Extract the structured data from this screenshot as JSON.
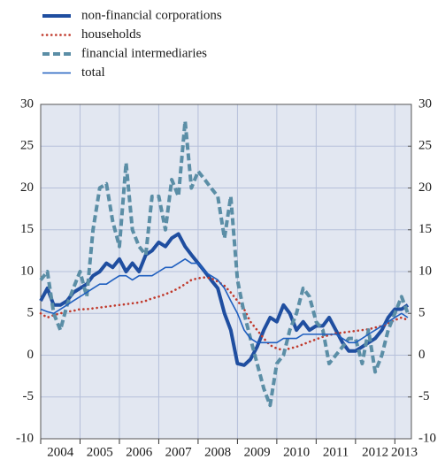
{
  "chart_data": {
    "type": "line",
    "x": [
      2004,
      2004.17,
      2004.33,
      2004.5,
      2004.67,
      2004.83,
      2005,
      2005.17,
      2005.33,
      2005.5,
      2005.67,
      2005.83,
      2006,
      2006.17,
      2006.33,
      2006.5,
      2006.67,
      2006.83,
      2007,
      2007.17,
      2007.33,
      2007.5,
      2007.67,
      2007.83,
      2008,
      2008.17,
      2008.33,
      2008.5,
      2008.67,
      2008.83,
      2009,
      2009.17,
      2009.33,
      2009.5,
      2009.67,
      2009.83,
      2010,
      2010.17,
      2010.33,
      2010.5,
      2010.67,
      2010.83,
      2011,
      2011.17,
      2011.33,
      2011.5,
      2011.67,
      2011.83,
      2012,
      2012.17,
      2012.33,
      2012.5,
      2012.67,
      2012.83,
      2013,
      2013.17,
      2013.33
    ],
    "series": [
      {
        "name": "non-financial corporations",
        "color": "#1f4ea0",
        "style": "thick",
        "values": [
          6.5,
          8,
          6,
          6,
          6.5,
          7.5,
          8,
          8.5,
          9.5,
          10,
          11,
          10.5,
          11.5,
          10,
          11,
          10,
          12,
          12.5,
          13.5,
          13,
          14,
          14.5,
          13,
          12,
          11,
          10,
          9,
          8,
          5,
          3,
          -1,
          -1.2,
          -0.5,
          1,
          3,
          4.5,
          4,
          6,
          5,
          3,
          4,
          3,
          3.5,
          3.5,
          4.5,
          3,
          1.5,
          0.5,
          0.5,
          1,
          1.5,
          2,
          3,
          4.5,
          5.5,
          5.5,
          6
        ]
      },
      {
        "name": "households",
        "color": "#c0392b",
        "style": "dotted",
        "values": [
          5,
          4.5,
          4.8,
          5,
          5.2,
          5.3,
          5.5,
          5.5,
          5.6,
          5.7,
          5.8,
          5.9,
          6,
          6.1,
          6.2,
          6.3,
          6.5,
          6.8,
          7,
          7.3,
          7.6,
          8,
          8.5,
          9,
          9.2,
          9.3,
          9.2,
          8.8,
          8.3,
          7.5,
          6.5,
          5.5,
          4,
          3,
          2,
          1.2,
          0.8,
          0.6,
          0.8,
          1,
          1.3,
          1.6,
          1.9,
          2.2,
          2.4,
          2.6,
          2.7,
          2.8,
          2.9,
          3,
          3.1,
          3.3,
          3.5,
          3.8,
          4.2,
          4.5,
          4.2
        ]
      },
      {
        "name": "financial intermediaries",
        "color": "#5b8ea6",
        "style": "dashed",
        "values": [
          9,
          10,
          5,
          3,
          6,
          8,
          10,
          7,
          15,
          20,
          20.5,
          16,
          13,
          23,
          15,
          13,
          12,
          19,
          19,
          15,
          21,
          19,
          28,
          20,
          22,
          21,
          20,
          19,
          14,
          19,
          9,
          5,
          2,
          -1,
          -4,
          -6,
          -1,
          0,
          3,
          5,
          8,
          7,
          4,
          3,
          -1,
          0,
          1,
          2,
          2,
          -1,
          3,
          -2,
          0,
          3,
          5,
          7,
          5
        ]
      },
      {
        "name": "total",
        "color": "#1f5fbf",
        "style": "thin",
        "values": [
          5.5,
          5.2,
          5,
          5.5,
          6,
          6.5,
          7,
          7.5,
          8,
          8.5,
          8.5,
          9,
          9.5,
          9.5,
          9,
          9.5,
          9.5,
          9.5,
          10,
          10.5,
          10.5,
          11,
          11.5,
          11,
          11,
          10,
          9.5,
          9,
          8,
          6.5,
          5,
          3,
          2,
          1.5,
          1.5,
          1.5,
          1.5,
          2,
          2,
          2,
          2.5,
          2.5,
          2.5,
          2.5,
          2.5,
          2.5,
          2,
          1.5,
          1.5,
          2,
          2.5,
          3,
          3.5,
          4,
          4.5,
          5,
          4.5
        ]
      }
    ],
    "xlim": [
      2004,
      2013.42
    ],
    "xticks": [
      2004,
      2005,
      2006,
      2007,
      2008,
      2009,
      2010,
      2011,
      2012,
      2013
    ],
    "ylim": [
      -10,
      30
    ],
    "yticks": [
      -10,
      -5,
      0,
      5,
      10,
      15,
      20,
      25,
      30
    ],
    "y2lim": [
      -10,
      30
    ],
    "y2ticks": [
      -10,
      -5,
      0,
      5,
      10,
      15,
      20,
      25,
      30
    ],
    "grid": true,
    "legend": "top-left"
  }
}
